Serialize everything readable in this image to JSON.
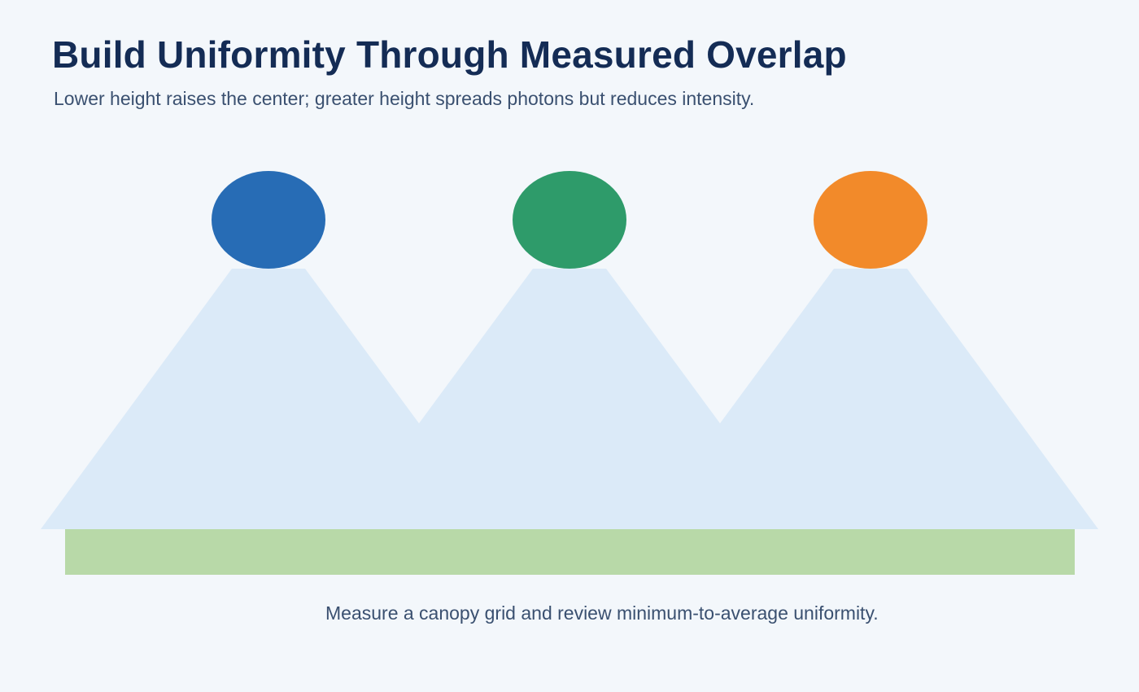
{
  "header": {
    "title": "Build Uniformity Through Measured Overlap",
    "subtitle": "Lower height raises the center; greater height spreads photons but reduces intensity."
  },
  "diagram": {
    "fixtures": [
      {
        "color": "#276cb5"
      },
      {
        "color": "#2e9b6a"
      },
      {
        "color": "#f28a2a"
      }
    ],
    "beam_color": "#dbeaf8",
    "canopy_color": "#b8d9a8"
  },
  "caption": "Measure a canopy grid and review minimum-to-average uniformity."
}
